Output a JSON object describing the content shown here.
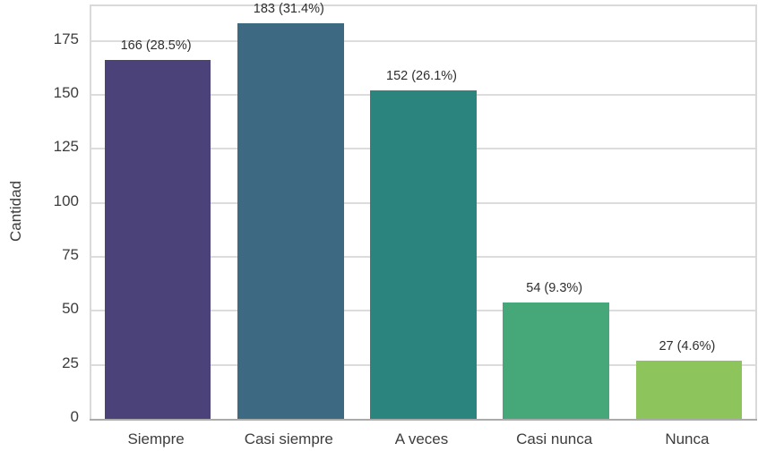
{
  "chart_data": {
    "type": "bar",
    "title": "",
    "xlabel": "",
    "ylabel": "Cantidad",
    "categories": [
      "Siempre",
      "Casi siempre",
      "A veces",
      "Casi nunca",
      "Nunca"
    ],
    "values": [
      166,
      183,
      152,
      54,
      27
    ],
    "percentages": [
      28.5,
      31.4,
      26.1,
      9.3,
      4.6
    ],
    "bar_labels": [
      "166 (28.5%)",
      "183 (31.4%)",
      "152 (26.1%)",
      "54 (9.3%)",
      "27 (4.6%)"
    ],
    "bar_colors": [
      "#4b4279",
      "#3d6983",
      "#2b847e",
      "#46a878",
      "#8dc45b"
    ],
    "yticks": [
      0,
      25,
      50,
      75,
      100,
      125,
      150,
      175
    ],
    "ylim": [
      0,
      191
    ],
    "grid": "horizontal",
    "legend": "none",
    "grid_color": "#dcdcdc",
    "box_color": "#d9d9d9",
    "axis_line_color": "#ababab",
    "tick_label_color": "#3d3d3d",
    "bar_label_color": "#2e2e2e",
    "background_color": "#ffffff"
  }
}
